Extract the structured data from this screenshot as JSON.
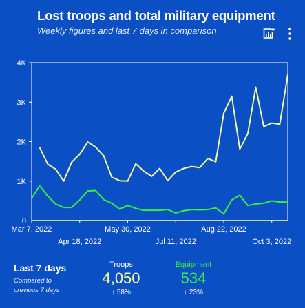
{
  "header": {
    "title": "Lost troops and total military equipment",
    "subtitle": "Weekly figures and last 7 days in comparison"
  },
  "colors": {
    "background": "#0a4fc4",
    "troops": "#f4fca0",
    "equipment": "#38f03f"
  },
  "icons": [
    "chart-icon",
    "more-vert-icon"
  ],
  "chart_data": {
    "type": "line",
    "ylim": [
      0,
      4000
    ],
    "y_tick_labels": [
      "0",
      "1K",
      "2K",
      "3K",
      "4K"
    ],
    "x_tick_labels_row1": [
      "Mar 7, 2022",
      "May 30, 2022",
      "Aug 22, 2022"
    ],
    "x_tick_labels_row2": [
      "Apr 18, 2022",
      "Jul 11, 2022",
      "Oct 3, 2022"
    ],
    "x": [
      "2022-03-07",
      "2022-03-14",
      "2022-03-21",
      "2022-03-28",
      "2022-04-04",
      "2022-04-11",
      "2022-04-18",
      "2022-04-25",
      "2022-05-02",
      "2022-05-09",
      "2022-05-16",
      "2022-05-23",
      "2022-05-30",
      "2022-06-06",
      "2022-06-13",
      "2022-06-20",
      "2022-06-27",
      "2022-07-04",
      "2022-07-11",
      "2022-07-18",
      "2022-07-25",
      "2022-08-01",
      "2022-08-08",
      "2022-08-15",
      "2022-08-22",
      "2022-08-29",
      "2022-09-05",
      "2022-09-12",
      "2022-09-19",
      "2022-09-26",
      "2022-10-03",
      "2022-10-10",
      "2022-10-17"
    ],
    "series": [
      {
        "values": [
          null,
          1850,
          1430,
          1300,
          1000,
          1480,
          1680,
          1990,
          1860,
          1640,
          1100,
          1010,
          1000,
          1440,
          1250,
          1120,
          1320,
          1010,
          1230,
          1320,
          1370,
          1340,
          1570,
          1490,
          2720,
          3150,
          1810,
          2200,
          3380,
          2380,
          2470,
          2440,
          3700
        ]
      },
      {
        "values": [
          560,
          880,
          620,
          420,
          330,
          330,
          520,
          750,
          760,
          530,
          440,
          290,
          380,
          310,
          260,
          260,
          260,
          280,
          190,
          250,
          280,
          270,
          280,
          320,
          170,
          520,
          640,
          380,
          420,
          440,
          500,
          470,
          470
        ]
      }
    ]
  },
  "footer": {
    "title": "Last 7 days",
    "subtitle": "Compared to previous 7 days",
    "troops": {
      "label": "Troops",
      "value": "4,050",
      "delta": "58%"
    },
    "equipment": {
      "label": "Equipment",
      "value": "534",
      "delta": "23%"
    }
  }
}
